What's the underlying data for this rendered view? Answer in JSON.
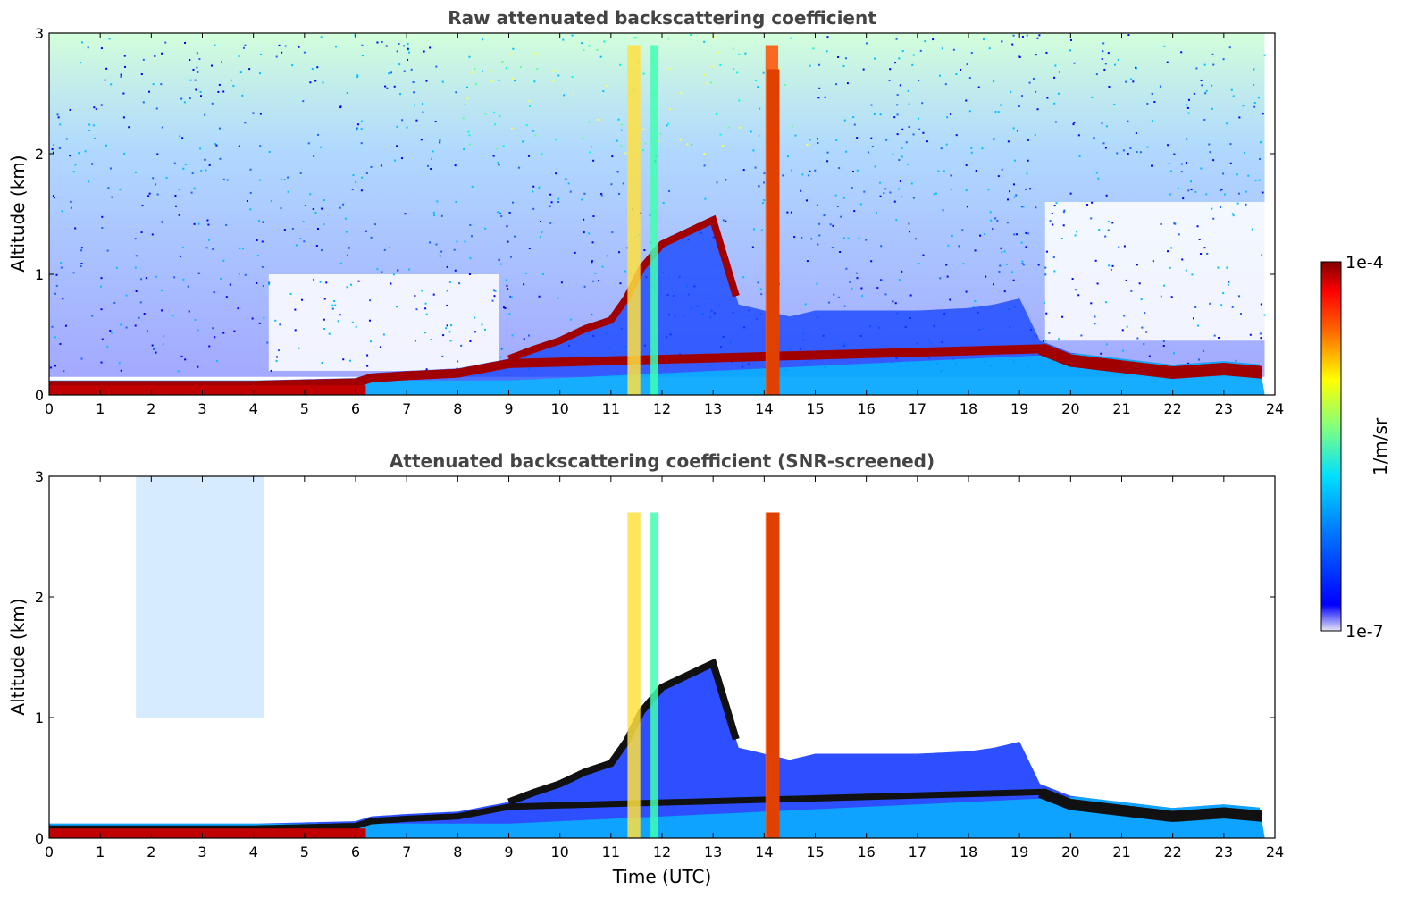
{
  "chart_data": [
    {
      "type": "heatmap",
      "title": "Raw attenuated backscattering coefficient",
      "xlabel": "",
      "ylabel": "Altitude (km)",
      "xlim": [
        0,
        24
      ],
      "ylim": [
        0,
        3
      ],
      "x_ticks": [
        "0",
        "1",
        "2",
        "3",
        "4",
        "5",
        "6",
        "7",
        "8",
        "9",
        "10",
        "11",
        "12",
        "13",
        "14",
        "15",
        "16",
        "17",
        "18",
        "19",
        "20",
        "21",
        "22",
        "23",
        "24"
      ],
      "y_ticks": [
        "0",
        "1",
        "2",
        "3"
      ],
      "layer_top_km": [
        [
          0,
          0.12
        ],
        [
          1,
          0.12
        ],
        [
          2,
          0.12
        ],
        [
          3,
          0.12
        ],
        [
          4,
          0.12
        ],
        [
          5,
          0.13
        ],
        [
          6,
          0.14
        ],
        [
          6.3,
          0.18
        ],
        [
          7,
          0.2
        ],
        [
          8,
          0.22
        ],
        [
          9,
          0.3
        ],
        [
          9.5,
          0.38
        ],
        [
          10,
          0.45
        ],
        [
          10.5,
          0.55
        ],
        [
          11,
          0.62
        ],
        [
          11.3,
          0.8
        ],
        [
          11.6,
          1.05
        ],
        [
          12,
          1.25
        ],
        [
          12.5,
          1.35
        ],
        [
          13,
          1.45
        ],
        [
          13.5,
          0.75
        ],
        [
          14,
          0.7
        ],
        [
          14.5,
          0.65
        ],
        [
          15,
          0.7
        ],
        [
          16,
          0.7
        ],
        [
          17,
          0.7
        ],
        [
          18,
          0.72
        ],
        [
          18.5,
          0.75
        ],
        [
          19,
          0.8
        ],
        [
          19.4,
          0.45
        ],
        [
          20,
          0.35
        ],
        [
          21,
          0.3
        ],
        [
          22,
          0.25
        ],
        [
          23,
          0.28
        ],
        [
          23.8,
          0.25
        ]
      ],
      "colorbar": {
        "min_label": "1e-7",
        "max_label": "1e-4",
        "unit": "1/m/sr"
      }
    },
    {
      "type": "heatmap",
      "title": "Attenuated backscattering coefficient (SNR-screened)",
      "xlabel": "Time (UTC)",
      "ylabel": "Altitude (km)",
      "xlim": [
        0,
        24
      ],
      "ylim": [
        0,
        3
      ],
      "x_ticks": [
        "0",
        "1",
        "2",
        "3",
        "4",
        "5",
        "6",
        "7",
        "8",
        "9",
        "10",
        "11",
        "12",
        "13",
        "14",
        "15",
        "16",
        "17",
        "18",
        "19",
        "20",
        "21",
        "22",
        "23",
        "24"
      ],
      "y_ticks": [
        "0",
        "1",
        "2",
        "3"
      ],
      "colorbar": {
        "min_label": "1e-7",
        "max_label": "1e-4",
        "unit": "1/m/sr"
      }
    }
  ],
  "colors": {
    "colormap": [
      "#e6e6f5",
      "#0000ff",
      "#00a0ff",
      "#00ffff",
      "#80ff80",
      "#ffff00",
      "#ff8000",
      "#ff0000",
      "#800000"
    ]
  }
}
